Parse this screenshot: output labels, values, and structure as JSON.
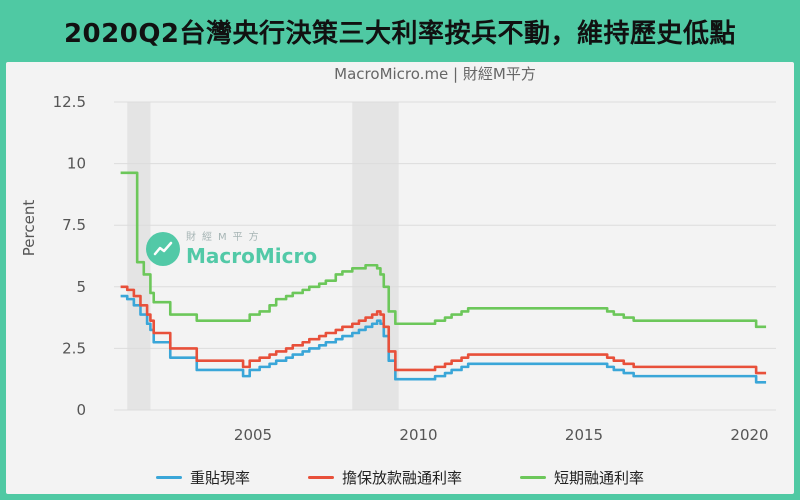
{
  "header": {
    "title": "2020Q2台灣央行決策三大利率按兵不動，維持歷史低點"
  },
  "watermark": {
    "top": "財經M平方",
    "main": "MacroMicro",
    "icon": "chart-trend-icon"
  },
  "colors": {
    "blue": "#3aa6d8",
    "red": "#e8503a",
    "green": "#6cc75a",
    "grid": "#dcdcdc",
    "shade": "#e4e4e4"
  },
  "chart_data": {
    "type": "line",
    "title": "MacroMicro.me | 財經M平方",
    "xlabel": "",
    "ylabel": "Percent",
    "xlim": [
      2000.8,
      2020.8
    ],
    "ylim": [
      0,
      12.5
    ],
    "yticks": [
      0,
      2.5,
      5,
      7.5,
      10,
      12.5
    ],
    "ytick_labels": [
      "0",
      "2.5",
      "5",
      "7.5",
      "10",
      "12.5"
    ],
    "xticks": [
      2005,
      2010,
      2015,
      2020
    ],
    "xtick_labels": [
      "2005",
      "2010",
      "2015",
      "2020"
    ],
    "grid": true,
    "shaded_periods": [
      [
        2001.2,
        2001.9
      ],
      [
        2008.0,
        2009.4
      ]
    ],
    "legend_position": "bottom",
    "series": [
      {
        "name": "重貼現率",
        "color": "#3aa6d8",
        "step": true,
        "x": [
          2001.0,
          2001.2,
          2001.4,
          2001.6,
          2001.8,
          2001.9,
          2002.0,
          2002.5,
          2003.3,
          2004.7,
          2004.9,
          2005.2,
          2005.5,
          2005.7,
          2006.0,
          2006.2,
          2006.5,
          2006.7,
          2007.0,
          2007.2,
          2007.5,
          2007.7,
          2008.0,
          2008.2,
          2008.4,
          2008.6,
          2008.75,
          2008.85,
          2008.95,
          2009.1,
          2009.3,
          2010.5,
          2010.8,
          2011.0,
          2011.3,
          2011.5,
          2015.7,
          2015.9,
          2016.2,
          2016.5,
          2019.9,
          2020.2,
          2020.5
        ],
        "y": [
          4.625,
          4.5,
          4.25,
          3.875,
          3.5,
          3.25,
          2.75,
          2.125,
          1.625,
          1.375,
          1.625,
          1.75,
          1.875,
          2.0,
          2.125,
          2.25,
          2.375,
          2.5,
          2.625,
          2.75,
          2.875,
          3.0,
          3.125,
          3.25,
          3.375,
          3.5,
          3.625,
          3.5,
          3.0,
          2.0,
          1.25,
          1.375,
          1.5,
          1.625,
          1.75,
          1.875,
          1.75,
          1.625,
          1.5,
          1.375,
          1.375,
          1.125,
          1.125
        ]
      },
      {
        "name": "擔保放款融通利率",
        "color": "#e8503a",
        "step": true,
        "x": [
          2001.0,
          2001.2,
          2001.4,
          2001.6,
          2001.8,
          2001.9,
          2002.0,
          2002.5,
          2003.3,
          2004.7,
          2004.9,
          2005.2,
          2005.5,
          2005.7,
          2006.0,
          2006.2,
          2006.5,
          2006.7,
          2007.0,
          2007.2,
          2007.5,
          2007.7,
          2008.0,
          2008.2,
          2008.4,
          2008.6,
          2008.75,
          2008.85,
          2008.95,
          2009.1,
          2009.3,
          2010.5,
          2010.8,
          2011.0,
          2011.3,
          2011.5,
          2015.7,
          2015.9,
          2016.2,
          2016.5,
          2019.9,
          2020.2,
          2020.5
        ],
        "y": [
          5.0,
          4.875,
          4.625,
          4.25,
          3.875,
          3.625,
          3.125,
          2.5,
          2.0,
          1.75,
          2.0,
          2.125,
          2.25,
          2.375,
          2.5,
          2.625,
          2.75,
          2.875,
          3.0,
          3.125,
          3.25,
          3.375,
          3.5,
          3.625,
          3.75,
          3.875,
          4.0,
          3.875,
          3.375,
          2.375,
          1.625,
          1.75,
          1.875,
          2.0,
          2.125,
          2.25,
          2.125,
          2.0,
          1.875,
          1.75,
          1.75,
          1.5,
          1.5
        ]
      },
      {
        "name": "短期融通利率",
        "color": "#6cc75a",
        "step": true,
        "x": [
          2001.0,
          2001.4,
          2001.5,
          2001.7,
          2001.9,
          2002.0,
          2002.5,
          2003.3,
          2004.7,
          2004.9,
          2005.2,
          2005.5,
          2005.7,
          2006.0,
          2006.2,
          2006.5,
          2006.7,
          2007.0,
          2007.2,
          2007.5,
          2007.7,
          2008.0,
          2008.2,
          2008.4,
          2008.6,
          2008.75,
          2008.85,
          2008.95,
          2009.1,
          2009.3,
          2010.5,
          2010.8,
          2011.0,
          2011.3,
          2011.5,
          2015.7,
          2015.9,
          2016.2,
          2016.5,
          2019.9,
          2020.2,
          2020.5
        ],
        "y": [
          9.625,
          9.625,
          6.0,
          5.5,
          4.75,
          4.375,
          3.875,
          3.625,
          3.625,
          3.875,
          4.0,
          4.25,
          4.5,
          4.625,
          4.75,
          4.875,
          5.0,
          5.125,
          5.25,
          5.5,
          5.625,
          5.75,
          5.75,
          5.875,
          5.875,
          5.75,
          5.5,
          5.0,
          4.0,
          3.5,
          3.625,
          3.75,
          3.875,
          4.0,
          4.125,
          4.0,
          3.875,
          3.75,
          3.625,
          3.625,
          3.375,
          3.375
        ]
      }
    ]
  }
}
